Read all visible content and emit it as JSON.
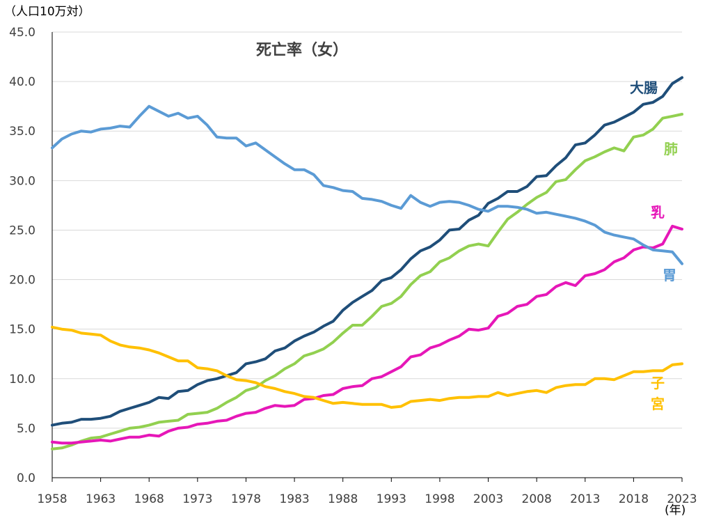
{
  "chart_data": {
    "type": "line",
    "title": "死亡率（女）",
    "y_unit_label": "（人口10万対）",
    "x_unit_label": "(年)",
    "ylim": [
      0,
      45
    ],
    "y_ticks": [
      "0.0",
      "5.0",
      "10.0",
      "15.0",
      "20.0",
      "25.0",
      "30.0",
      "35.0",
      "40.0",
      "45.0"
    ],
    "x_range": [
      1958,
      2023
    ],
    "x_ticks": [
      "1958",
      "1963",
      "1968",
      "1973",
      "1978",
      "1983",
      "1988",
      "1993",
      "1998",
      "2003",
      "2008",
      "2013",
      "2018",
      "2023"
    ],
    "grid": "horizontal",
    "x_start": 1958,
    "series": [
      {
        "name": "大腸",
        "color": "#1f4e79",
        "values": [
          5.3,
          5.5,
          5.6,
          5.9,
          5.9,
          6.0,
          6.2,
          6.7,
          7.0,
          7.3,
          7.6,
          8.1,
          8.0,
          8.7,
          8.8,
          9.4,
          9.8,
          10.0,
          10.3,
          10.6,
          11.5,
          11.7,
          12.0,
          12.8,
          13.1,
          13.8,
          14.3,
          14.7,
          15.3,
          15.8,
          16.9,
          17.7,
          18.3,
          18.9,
          19.9,
          20.2,
          21.0,
          22.1,
          22.9,
          23.3,
          24.0,
          25.0,
          25.1,
          26.0,
          26.5,
          27.7,
          28.2,
          28.9,
          28.9,
          29.4,
          30.4,
          30.5,
          31.5,
          32.3,
          33.6,
          33.8,
          34.6,
          35.6,
          35.9,
          36.4,
          36.9,
          37.7,
          37.9,
          38.5,
          39.8,
          40.4
        ]
      },
      {
        "name": "肺",
        "color": "#92d050",
        "values": [
          2.9,
          3.0,
          3.3,
          3.7,
          4.0,
          4.1,
          4.4,
          4.7,
          5.0,
          5.1,
          5.3,
          5.6,
          5.7,
          5.8,
          6.4,
          6.5,
          6.6,
          7.0,
          7.6,
          8.1,
          8.8,
          9.1,
          9.8,
          10.3,
          11.0,
          11.5,
          12.3,
          12.6,
          13.0,
          13.7,
          14.6,
          15.4,
          15.4,
          16.3,
          17.3,
          17.6,
          18.3,
          19.5,
          20.4,
          20.8,
          21.8,
          22.2,
          22.9,
          23.4,
          23.6,
          23.4,
          24.8,
          26.1,
          26.8,
          27.6,
          28.3,
          28.8,
          29.9,
          30.1,
          31.1,
          32.0,
          32.4,
          32.9,
          33.3,
          33.0,
          34.4,
          34.6,
          35.2,
          36.3,
          36.5,
          36.7
        ]
      },
      {
        "name": "乳",
        "color": "#e617b8",
        "values": [
          3.6,
          3.5,
          3.5,
          3.6,
          3.7,
          3.8,
          3.7,
          3.9,
          4.1,
          4.1,
          4.3,
          4.2,
          4.7,
          5.0,
          5.1,
          5.4,
          5.5,
          5.7,
          5.8,
          6.2,
          6.5,
          6.6,
          7.0,
          7.3,
          7.2,
          7.3,
          7.9,
          8.0,
          8.3,
          8.4,
          9.0,
          9.2,
          9.3,
          10.0,
          10.2,
          10.7,
          11.2,
          12.2,
          12.4,
          13.1,
          13.4,
          13.9,
          14.3,
          15.0,
          14.9,
          15.1,
          16.3,
          16.6,
          17.3,
          17.5,
          18.3,
          18.5,
          19.3,
          19.7,
          19.4,
          20.4,
          20.6,
          21.0,
          21.8,
          22.2,
          23.0,
          23.3,
          23.2,
          23.6,
          25.4,
          25.1
        ]
      },
      {
        "name": "胃",
        "color": "#5b9bd5",
        "values": [
          33.3,
          34.2,
          34.7,
          35.0,
          34.9,
          35.2,
          35.3,
          35.5,
          35.4,
          36.5,
          37.5,
          37.0,
          36.5,
          36.8,
          36.3,
          36.5,
          35.6,
          34.4,
          34.3,
          34.3,
          33.5,
          33.8,
          33.1,
          32.4,
          31.7,
          31.1,
          31.1,
          30.6,
          29.5,
          29.3,
          29.0,
          28.9,
          28.2,
          28.1,
          27.9,
          27.5,
          27.2,
          28.5,
          27.8,
          27.4,
          27.8,
          27.9,
          27.8,
          27.5,
          27.1,
          26.9,
          27.4,
          27.4,
          27.3,
          27.1,
          26.7,
          26.8,
          26.6,
          26.4,
          26.2,
          25.9,
          25.5,
          24.8,
          24.5,
          24.3,
          24.1,
          23.5,
          23.0,
          22.9,
          22.8,
          21.6
        ]
      },
      {
        "name": "子宮",
        "color": "#ffc000",
        "values": [
          15.2,
          15.0,
          14.9,
          14.6,
          14.5,
          14.4,
          13.8,
          13.4,
          13.2,
          13.1,
          12.9,
          12.6,
          12.2,
          11.8,
          11.8,
          11.1,
          11.0,
          10.8,
          10.3,
          9.9,
          9.8,
          9.6,
          9.2,
          9.0,
          8.7,
          8.5,
          8.2,
          8.1,
          7.8,
          7.5,
          7.6,
          7.5,
          7.4,
          7.4,
          7.4,
          7.1,
          7.2,
          7.7,
          7.8,
          7.9,
          7.8,
          8.0,
          8.1,
          8.1,
          8.2,
          8.2,
          8.6,
          8.3,
          8.5,
          8.7,
          8.8,
          8.6,
          9.1,
          9.3,
          9.4,
          9.4,
          10.0,
          10.0,
          9.9,
          10.3,
          10.7,
          10.7,
          10.8,
          10.8,
          11.4,
          11.5
        ]
      }
    ],
    "annotations": [
      {
        "name": "大腸",
        "lines": [
          "大腸"
        ],
        "color": "#1f4e79"
      },
      {
        "name": "肺",
        "lines": [
          "肺"
        ],
        "color": "#92d050"
      },
      {
        "name": "乳",
        "lines": [
          "乳"
        ],
        "color": "#e617b8"
      },
      {
        "name": "胃",
        "lines": [
          "胃"
        ],
        "color": "#5b9bd5"
      },
      {
        "name": "子宮",
        "lines": [
          "子",
          "宮"
        ],
        "color": "#ffc000"
      }
    ]
  }
}
